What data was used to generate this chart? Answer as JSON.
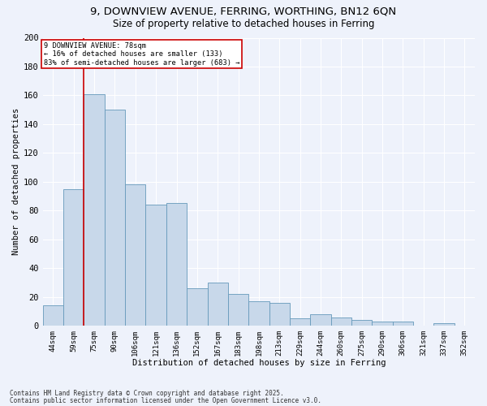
{
  "title1": "9, DOWNVIEW AVENUE, FERRING, WORTHING, BN12 6QN",
  "title2": "Size of property relative to detached houses in Ferring",
  "xlabel": "Distribution of detached houses by size in Ferring",
  "ylabel": "Number of detached properties",
  "categories": [
    "44sqm",
    "59sqm",
    "75sqm",
    "90sqm",
    "106sqm",
    "121sqm",
    "136sqm",
    "152sqm",
    "167sqm",
    "183sqm",
    "198sqm",
    "213sqm",
    "229sqm",
    "244sqm",
    "260sqm",
    "275sqm",
    "290sqm",
    "306sqm",
    "321sqm",
    "337sqm",
    "352sqm"
  ],
  "values": [
    14,
    95,
    161,
    150,
    98,
    84,
    85,
    26,
    30,
    22,
    17,
    16,
    5,
    8,
    6,
    4,
    3,
    3,
    0,
    2,
    0
  ],
  "bar_color": "#c8d8ea",
  "bar_edge_color": "#6699bb",
  "background_color": "#eef2fb",
  "grid_color": "#ffffff",
  "annotation_text": "9 DOWNVIEW AVENUE: 78sqm\n← 16% of detached houses are smaller (133)\n83% of semi-detached houses are larger (683) →",
  "vline_color": "#cc0000",
  "ylim": [
    0,
    200
  ],
  "yticks": [
    0,
    20,
    40,
    60,
    80,
    100,
    120,
    140,
    160,
    180,
    200
  ],
  "footnote1": "Contains HM Land Registry data © Crown copyright and database right 2025.",
  "footnote2": "Contains public sector information licensed under the Open Government Licence v3.0."
}
